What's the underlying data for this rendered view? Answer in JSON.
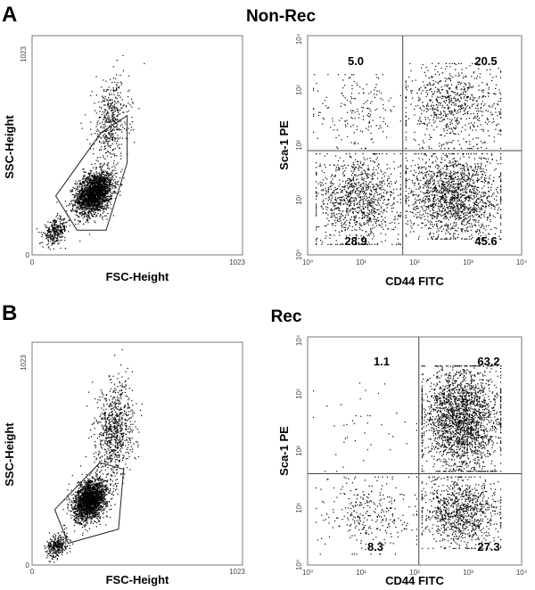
{
  "figure": {
    "panels": [
      {
        "letter": "A",
        "title": "Non-Rec",
        "scatter": {
          "xlabel": "FSC-Height",
          "ylabel": "SSC-Height",
          "x_ticks": [
            "0",
            "1023"
          ],
          "y_ticks": [
            "0",
            "1023"
          ]
        },
        "quadrant": {
          "xlabel": "CD44 FITC",
          "ylabel": "Sca-1 PE",
          "ticks": [
            "10⁰",
            "10¹",
            "10²",
            "10³",
            "10⁴"
          ],
          "upper_left": "5.0",
          "upper_right": "20.5",
          "lower_left": "28.9",
          "lower_right": "45.6"
        }
      },
      {
        "letter": "B",
        "title": "Rec",
        "scatter": {
          "xlabel": "FSC-Height",
          "ylabel": "SSC-Height",
          "x_ticks": [
            "0",
            "1023"
          ],
          "y_ticks": [
            "0",
            "1023"
          ]
        },
        "quadrant": {
          "xlabel": "CD44 FITC",
          "ylabel": "Sca-1 PE",
          "ticks": [
            "10⁰",
            "10¹",
            "10²",
            "10³",
            "10⁴"
          ],
          "upper_left": "1.1",
          "upper_right": "63.2",
          "lower_left": "8.3",
          "lower_right": "27.3"
        }
      }
    ]
  },
  "chart_data": [
    {
      "type": "scatter",
      "panel": "A",
      "title": "Non-Rec",
      "xlabel": "FSC-Height",
      "ylabel": "SSC-Height",
      "xlim": [
        0,
        1023
      ],
      "ylim": [
        0,
        1023
      ],
      "gate_polygon_x": [
        115,
        335,
        462,
        462,
        360,
        218,
        115
      ],
      "gate_polygon_y": [
        275,
        570,
        650,
        430,
        115,
        115,
        275
      ],
      "populations": [
        {
          "center": [
            300,
            290
          ],
          "spread": [
            90,
            95
          ],
          "share": 0.7
        },
        {
          "center": [
            380,
            620
          ],
          "spread": [
            90,
            200
          ],
          "share": 0.15
        },
        {
          "center": [
            110,
            110
          ],
          "spread": [
            60,
            55
          ],
          "share": 0.1
        }
      ]
    },
    {
      "type": "scatter",
      "panel": "A",
      "title": "Non-Rec",
      "xlabel": "CD44 FITC",
      "ylabel": "Sca-1 PE",
      "scale": "log",
      "xlim": [
        1,
        10000
      ],
      "ylim": [
        1,
        10000
      ],
      "gate_x": 60,
      "gate_y": 80,
      "quadrant_percent": {
        "upper_left": 5.0,
        "upper_right": 20.5,
        "lower_left": 28.9,
        "lower_right": 45.6
      }
    },
    {
      "type": "scatter",
      "panel": "B",
      "title": "Rec",
      "xlabel": "FSC-Height",
      "ylabel": "SSC-Height",
      "xlim": [
        0,
        1023
      ],
      "ylim": [
        0,
        1023
      ],
      "gate_polygon_x": [
        110,
        330,
        445,
        420,
        175,
        110
      ],
      "gate_polygon_y": [
        255,
        470,
        440,
        165,
        100,
        255
      ],
      "populations": [
        {
          "center": [
            280,
            300
          ],
          "spread": [
            80,
            90
          ],
          "share": 0.65
        },
        {
          "center": [
            400,
            620
          ],
          "spread": [
            90,
            220
          ],
          "share": 0.25
        },
        {
          "center": [
            120,
            90
          ],
          "spread": [
            50,
            50
          ],
          "share": 0.1
        }
      ]
    },
    {
      "type": "scatter",
      "panel": "B",
      "title": "Rec",
      "xlabel": "CD44 FITC",
      "ylabel": "Sca-1 PE",
      "scale": "log",
      "xlim": [
        1,
        10000
      ],
      "ylim": [
        1,
        10000
      ],
      "gate_x": 120,
      "gate_y": 40,
      "quadrant_percent": {
        "upper_left": 1.1,
        "upper_right": 63.2,
        "lower_left": 8.3,
        "lower_right": 27.3
      }
    }
  ]
}
